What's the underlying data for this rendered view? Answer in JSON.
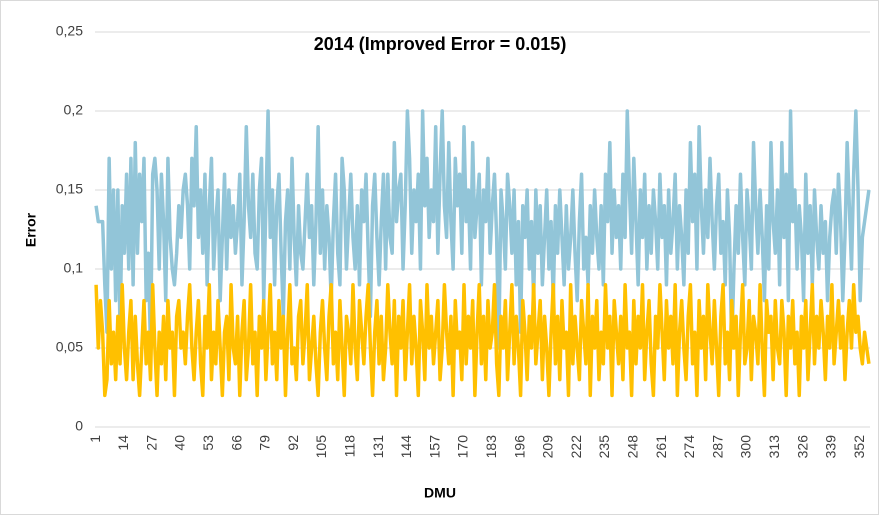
{
  "chart_data": {
    "type": "line",
    "title": "2014 (Improved Error = 0.015)",
    "x_label": "DMU",
    "y_label": "Error",
    "categories": [
      "1",
      null,
      null,
      null,
      null,
      null,
      null,
      null,
      null,
      null,
      null,
      null,
      null,
      "14",
      null,
      null,
      null,
      null,
      null,
      null,
      null,
      null,
      null,
      null,
      null,
      null,
      "27",
      null,
      null,
      null,
      null,
      null,
      null,
      null,
      null,
      null,
      null,
      null,
      null,
      "40",
      null,
      null,
      null,
      null,
      null,
      null,
      null,
      null,
      null,
      null,
      null,
      null,
      "53",
      null,
      null,
      null,
      null,
      null,
      null,
      null,
      null,
      null,
      null,
      null,
      null,
      "66",
      null,
      null,
      null,
      null,
      null,
      null,
      null,
      null,
      null,
      null,
      null,
      null,
      "79",
      null,
      null,
      null,
      null,
      null,
      null,
      null,
      null,
      null,
      null,
      null,
      null,
      "92",
      null,
      null,
      null,
      null,
      null,
      null,
      null,
      null,
      null,
      null,
      null,
      null,
      "105",
      null,
      null,
      null,
      null,
      null,
      null,
      null,
      null,
      null,
      null,
      null,
      null,
      "118",
      null,
      null,
      null,
      null,
      null,
      null,
      null,
      null,
      null,
      null,
      null,
      null,
      "131",
      null,
      null,
      null,
      null,
      null,
      null,
      null,
      null,
      null,
      null,
      null,
      null,
      "144",
      null,
      null,
      null,
      null,
      null,
      null,
      null,
      null,
      null,
      null,
      null,
      null,
      "157",
      null,
      null,
      null,
      null,
      null,
      null,
      null,
      null,
      null,
      null,
      null,
      null,
      "170",
      null,
      null,
      null,
      null,
      null,
      null,
      null,
      null,
      null,
      null,
      null,
      null,
      "183",
      null,
      null,
      null,
      null,
      null,
      null,
      null,
      null,
      null,
      null,
      null,
      null,
      "196",
      null,
      null,
      null,
      null,
      null,
      null,
      null,
      null,
      null,
      null,
      null,
      null,
      "209",
      null,
      null,
      null,
      null,
      null,
      null,
      null,
      null,
      null,
      null,
      null,
      null,
      "222",
      null,
      null,
      null,
      null,
      null,
      null,
      null,
      null,
      null,
      null,
      null,
      null,
      "235",
      null,
      null,
      null,
      null,
      null,
      null,
      null,
      null,
      null,
      null,
      null,
      null,
      "248",
      null,
      null,
      null,
      null,
      null,
      null,
      null,
      null,
      null,
      null,
      null,
      null,
      "261",
      null,
      null,
      null,
      null,
      null,
      null,
      null,
      null,
      null,
      null,
      null,
      null,
      "274",
      null,
      null,
      null,
      null,
      null,
      null,
      null,
      null,
      null,
      null,
      null,
      null,
      "287",
      null,
      null,
      null,
      null,
      null,
      null,
      null,
      null,
      null,
      null,
      null,
      null,
      "300",
      null,
      null,
      null,
      null,
      null,
      null,
      null,
      null,
      null,
      null,
      null,
      null,
      "313",
      null,
      null,
      null,
      null,
      null,
      null,
      null,
      null,
      null,
      null,
      null,
      null,
      "326",
      null,
      null,
      null,
      null,
      null,
      null,
      null,
      null,
      null,
      null,
      null,
      null,
      "339",
      null,
      null,
      null,
      null,
      null,
      null,
      null,
      null,
      null,
      null,
      null,
      null,
      "352",
      null,
      null,
      null,
      null
    ],
    "series": [
      {
        "color": "#92c5d8",
        "values": [
          0.14,
          0.13,
          0.13,
          0.13,
          0.09,
          0.06,
          0.17,
          0.1,
          0.15,
          0.08,
          0.15,
          0.06,
          0.14,
          0.11,
          0.16,
          0.1,
          0.17,
          0.09,
          0.18,
          0.11,
          0.16,
          0.13,
          0.17,
          0.08,
          0.11,
          0.05,
          0.16,
          0.17,
          0.15,
          0.1,
          0.16,
          0.13,
          0.08,
          0.17,
          0.12,
          0.1,
          0.09,
          0.11,
          0.14,
          0.12,
          0.15,
          0.16,
          0.14,
          0.1,
          0.17,
          0.14,
          0.19,
          0.12,
          0.15,
          0.11,
          0.16,
          0.09,
          0.14,
          0.17,
          0.1,
          0.13,
          0.15,
          0.08,
          0.12,
          0.16,
          0.1,
          0.15,
          0.12,
          0.14,
          0.11,
          0.13,
          0.16,
          0.09,
          0.13,
          0.19,
          0.14,
          0.12,
          0.16,
          0.11,
          0.1,
          0.15,
          0.17,
          0.08,
          0.14,
          0.2,
          0.12,
          0.15,
          0.09,
          0.14,
          0.16,
          0.11,
          0.07,
          0.13,
          0.15,
          0.1,
          0.17,
          0.12,
          0.09,
          0.14,
          0.11,
          0.1,
          0.13,
          0.16,
          0.12,
          0.14,
          0.09,
          0.13,
          0.19,
          0.11,
          0.15,
          0.1,
          0.14,
          0.12,
          0.08,
          0.13,
          0.16,
          0.11,
          0.09,
          0.17,
          0.15,
          0.1,
          0.13,
          0.16,
          0.12,
          0.1,
          0.14,
          0.09,
          0.15,
          0.13,
          0.16,
          0.11,
          0.07,
          0.14,
          0.16,
          0.12,
          0.09,
          0.13,
          0.16,
          0.1,
          0.16,
          0.12,
          0.11,
          0.18,
          0.13,
          0.15,
          0.16,
          0.1,
          0.14,
          0.2,
          0.17,
          0.11,
          0.15,
          0.13,
          0.16,
          0.1,
          0.2,
          0.14,
          0.17,
          0.12,
          0.15,
          0.13,
          0.19,
          0.11,
          0.16,
          0.2,
          0.14,
          0.12,
          0.18,
          0.13,
          0.1,
          0.17,
          0.14,
          0.16,
          0.11,
          0.19,
          0.13,
          0.15,
          0.1,
          0.18,
          0.12,
          0.14,
          0.16,
          0.09,
          0.15,
          0.13,
          0.17,
          0.11,
          0.14,
          0.16,
          0.12,
          0.05,
          0.15,
          0.13,
          0.1,
          0.16,
          0.14,
          0.11,
          0.15,
          0.09,
          0.13,
          0.06,
          0.14,
          0.12,
          0.15,
          0.1,
          0.13,
          0.08,
          0.15,
          0.11,
          0.14,
          0.09,
          0.12,
          0.15,
          0.1,
          0.13,
          0.08,
          0.14,
          0.11,
          0.15,
          0.12,
          0.09,
          0.14,
          0.1,
          0.12,
          0.15,
          0.11,
          0.08,
          0.13,
          0.16,
          0.1,
          0.12,
          0.09,
          0.14,
          0.11,
          0.15,
          0.12,
          0.1,
          0.14,
          0.09,
          0.16,
          0.13,
          0.18,
          0.11,
          0.15,
          0.12,
          0.14,
          0.1,
          0.16,
          0.12,
          0.2,
          0.15,
          0.11,
          0.17,
          0.13,
          0.09,
          0.15,
          0.12,
          0.16,
          0.1,
          0.14,
          0.11,
          0.15,
          0.13,
          0.1,
          0.16,
          0.12,
          0.14,
          0.09,
          0.15,
          0.11,
          0.13,
          0.16,
          0.1,
          0.14,
          0.12,
          0.09,
          0.15,
          0.11,
          0.18,
          0.13,
          0.16,
          0.1,
          0.19,
          0.14,
          0.11,
          0.15,
          0.12,
          0.17,
          0.13,
          0.1,
          0.14,
          0.16,
          0.11,
          0.13,
          0.09,
          0.15,
          0.12,
          0.05,
          0.1,
          0.14,
          0.11,
          0.16,
          0.12,
          0.09,
          0.15,
          0.13,
          0.1,
          0.18,
          0.14,
          0.11,
          0.15,
          0.12,
          0.08,
          0.14,
          0.1,
          0.18,
          0.13,
          0.11,
          0.15,
          0.09,
          0.18,
          0.12,
          0.16,
          0.08,
          0.2,
          0.13,
          0.15,
          0.1,
          0.14,
          0.12,
          0.08,
          0.16,
          0.11,
          0.14,
          0.09,
          0.15,
          0.12,
          0.1,
          0.14,
          0.11,
          0.13,
          0.08,
          0.12,
          0.14,
          0.15,
          0.11,
          0.16,
          0.13,
          0.08,
          0.12,
          0.18,
          0.14,
          0.1,
          0.16,
          0.2,
          0.15,
          0.08,
          0.12,
          0.13,
          0.14,
          0.15
        ]
      },
      {
        "color": "#ffc000",
        "values": [
          0.09,
          0.05,
          0.08,
          0.06,
          0.02,
          0.03,
          0.08,
          0.04,
          0.06,
          0.03,
          0.07,
          0.04,
          0.09,
          0.05,
          0.03,
          0.06,
          0.08,
          0.03,
          0.07,
          0.04,
          0.02,
          0.05,
          0.08,
          0.04,
          0.06,
          0.03,
          0.09,
          0.05,
          0.02,
          0.06,
          0.04,
          0.07,
          0.03,
          0.08,
          0.05,
          0.06,
          0.02,
          0.07,
          0.08,
          0.05,
          0.06,
          0.04,
          0.07,
          0.09,
          0.05,
          0.03,
          0.06,
          0.08,
          0.04,
          0.02,
          0.07,
          0.05,
          0.09,
          0.03,
          0.06,
          0.04,
          0.08,
          0.05,
          0.02,
          0.06,
          0.07,
          0.03,
          0.09,
          0.05,
          0.04,
          0.07,
          0.02,
          0.06,
          0.08,
          0.03,
          0.05,
          0.09,
          0.04,
          0.06,
          0.02,
          0.07,
          0.05,
          0.08,
          0.03,
          0.06,
          0.09,
          0.04,
          0.06,
          0.03,
          0.08,
          0.05,
          0.07,
          0.02,
          0.06,
          0.09,
          0.04,
          0.05,
          0.03,
          0.07,
          0.08,
          0.04,
          0.06,
          0.09,
          0.03,
          0.05,
          0.07,
          0.04,
          0.02,
          0.06,
          0.08,
          0.05,
          0.03,
          0.07,
          0.09,
          0.04,
          0.06,
          0.03,
          0.08,
          0.05,
          0.02,
          0.07,
          0.06,
          0.04,
          0.09,
          0.05,
          0.03,
          0.08,
          0.06,
          0.04,
          0.07,
          0.09,
          0.05,
          0.02,
          0.06,
          0.08,
          0.04,
          0.07,
          0.03,
          0.05,
          0.09,
          0.06,
          0.04,
          0.08,
          0.02,
          0.07,
          0.05,
          0.08,
          0.03,
          0.06,
          0.09,
          0.04,
          0.07,
          0.05,
          0.02,
          0.08,
          0.06,
          0.03,
          0.09,
          0.05,
          0.07,
          0.04,
          0.06,
          0.08,
          0.03,
          0.05,
          0.09,
          0.06,
          0.04,
          0.07,
          0.02,
          0.08,
          0.05,
          0.06,
          0.03,
          0.09,
          0.04,
          0.07,
          0.05,
          0.08,
          0.02,
          0.06,
          0.09,
          0.04,
          0.07,
          0.03,
          0.08,
          0.05,
          0.06,
          0.09,
          0.04,
          0.02,
          0.07,
          0.05,
          0.08,
          0.03,
          0.06,
          0.09,
          0.04,
          0.07,
          0.05,
          0.02,
          0.08,
          0.06,
          0.03,
          0.07,
          0.05,
          0.09,
          0.04,
          0.06,
          0.08,
          0.03,
          0.07,
          0.05,
          0.02,
          0.06,
          0.09,
          0.04,
          0.07,
          0.03,
          0.08,
          0.05,
          0.06,
          0.02,
          0.09,
          0.04,
          0.07,
          0.05,
          0.03,
          0.08,
          0.06,
          0.04,
          0.09,
          0.02,
          0.07,
          0.05,
          0.08,
          0.03,
          0.06,
          0.04,
          0.09,
          0.05,
          0.07,
          0.02,
          0.08,
          0.06,
          0.04,
          0.07,
          0.03,
          0.09,
          0.05,
          0.06,
          0.02,
          0.08,
          0.04,
          0.07,
          0.05,
          0.09,
          0.03,
          0.06,
          0.08,
          0.04,
          0.02,
          0.07,
          0.05,
          0.09,
          0.06,
          0.03,
          0.08,
          0.05,
          0.07,
          0.04,
          0.09,
          0.02,
          0.06,
          0.08,
          0.05,
          0.03,
          0.07,
          0.09,
          0.04,
          0.06,
          0.02,
          0.08,
          0.05,
          0.07,
          0.03,
          0.09,
          0.06,
          0.04,
          0.08,
          0.05,
          0.02,
          0.07,
          0.09,
          0.04,
          0.06,
          0.03,
          0.08,
          0.05,
          0.07,
          0.02,
          0.06,
          0.09,
          0.04,
          0.05,
          0.08,
          0.03,
          0.07,
          0.06,
          0.04,
          0.09,
          0.05,
          0.02,
          0.08,
          0.06,
          0.07,
          0.03,
          0.08,
          0.05,
          0.04,
          0.08,
          0.06,
          0.02,
          0.07,
          0.05,
          0.08,
          0.04,
          0.06,
          0.02,
          0.07,
          0.05,
          0.08,
          0.03,
          0.06,
          0.09,
          0.04,
          0.07,
          0.05,
          0.08,
          0.06,
          0.03,
          0.07,
          0.05,
          0.09,
          0.04,
          0.06,
          0.08,
          0.05,
          0.07,
          0.03,
          0.06,
          0.08,
          0.05,
          0.09,
          0.06,
          0.07,
          0.05,
          0.04,
          0.06,
          0.05,
          0.04
        ]
      }
    ],
    "ylim": [
      0,
      0.25
    ],
    "yticks": [
      {
        "value": 0,
        "label": "0"
      },
      {
        "value": 0.05,
        "label": "0,05"
      },
      {
        "value": 0.1,
        "label": "0,1"
      },
      {
        "value": 0.15,
        "label": "0,15"
      },
      {
        "value": 0.2,
        "label": "0,2"
      },
      {
        "value": 0.25,
        "label": "0,25"
      }
    ],
    "grid": true
  }
}
